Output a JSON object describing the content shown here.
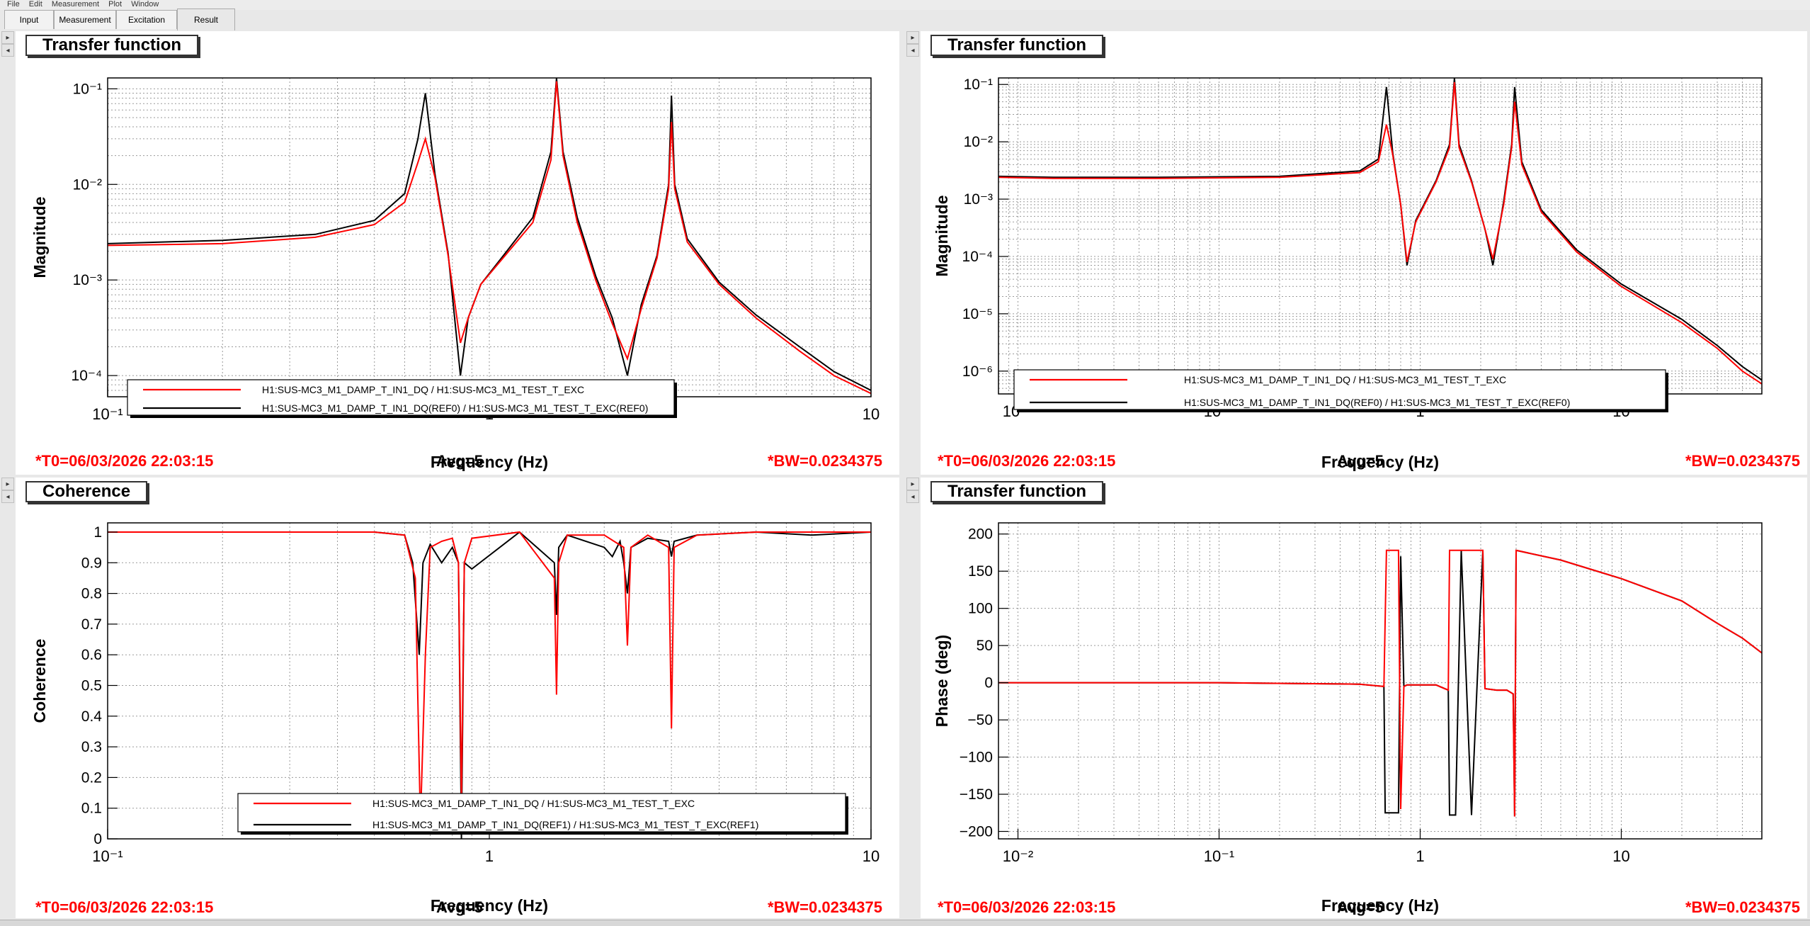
{
  "menu": [
    "File",
    "Edit",
    "Measurement",
    "Plot",
    "Window"
  ],
  "tabs": [
    {
      "label": "Input"
    },
    {
      "label": "Measurement"
    },
    {
      "label": "Excitation"
    },
    {
      "label": "Result",
      "active": true
    }
  ],
  "panels": [
    {
      "title": "Transfer function",
      "t0": "*T0=06/03/2026 22:03:15",
      "avg": "Avg=5",
      "bw": "*BW=0.0234375"
    },
    {
      "title": "Transfer function",
      "t0": "*T0=06/03/2026 22:03:15",
      "avg": "Avg=5",
      "bw": "*BW=0.0234375"
    },
    {
      "title": "Coherence",
      "t0": "*T0=06/03/2026 22:03:15",
      "avg": "Avg=5",
      "bw": "*BW=0.0234375"
    },
    {
      "title": "Transfer function",
      "t0": "*T0=06/03/2026 22:03:15",
      "avg": "Avg=5",
      "bw": "*BW=0.0234375"
    }
  ],
  "colors": {
    "current": "#ff0000",
    "reference": "#000000",
    "status": "#ff0000"
  },
  "chart_data": [
    {
      "type": "line",
      "xlabel": "Frequency (Hz)",
      "ylabel": "Magnitude",
      "xscale": "log",
      "yscale": "log",
      "xlim": [
        0.1,
        10
      ],
      "ylim": [
        6e-05,
        0.13
      ],
      "grid": true,
      "legend_position": "bottom-left",
      "xticks": [
        {
          "v": 0.1,
          "label": "10⁻¹"
        },
        {
          "v": 1,
          "label": "1"
        },
        {
          "v": 10,
          "label": "10"
        }
      ],
      "yticks": [
        {
          "v": 0.0001,
          "label": "10⁻⁴"
        },
        {
          "v": 0.001,
          "label": "10⁻³"
        },
        {
          "v": 0.01,
          "label": "10⁻²"
        },
        {
          "v": 0.1,
          "label": "10⁻¹"
        }
      ],
      "series": [
        {
          "name": "H1:SUS-MC3_M1_DAMP_T_IN1_DQ / H1:SUS-MC3_M1_TEST_T_EXC",
          "color": "#ff0000",
          "x": [
            0.1,
            0.2,
            0.35,
            0.5,
            0.6,
            0.65,
            0.68,
            0.72,
            0.78,
            0.84,
            0.88,
            0.95,
            1.1,
            1.3,
            1.45,
            1.5,
            1.56,
            1.7,
            1.9,
            2.1,
            2.3,
            2.5,
            2.75,
            2.95,
            3.0,
            3.06,
            3.3,
            4.0,
            5.0,
            6.5,
            8.0,
            10.0
          ],
          "y": [
            0.0023,
            0.0024,
            0.0028,
            0.0038,
            0.0065,
            0.017,
            0.03,
            0.012,
            0.0018,
            0.00022,
            0.0004,
            0.0009,
            0.0018,
            0.004,
            0.018,
            0.12,
            0.02,
            0.004,
            0.001,
            0.00035,
            0.00015,
            0.0005,
            0.0017,
            0.009,
            0.045,
            0.009,
            0.0025,
            0.0009,
            0.0004,
            0.00018,
            0.0001,
            6.5e-05
          ]
        },
        {
          "name": "H1:SUS-MC3_M1_DAMP_T_IN1_DQ(REF0) / H1:SUS-MC3_M1_TEST_T_EXC(REF0)",
          "color": "#000000",
          "x": [
            0.1,
            0.2,
            0.35,
            0.5,
            0.6,
            0.65,
            0.68,
            0.72,
            0.78,
            0.84,
            0.88,
            0.95,
            1.1,
            1.3,
            1.45,
            1.5,
            1.56,
            1.7,
            1.9,
            2.1,
            2.3,
            2.5,
            2.75,
            2.95,
            3.0,
            3.06,
            3.3,
            4.0,
            5.0,
            6.5,
            8.0,
            10.0
          ],
          "y": [
            0.0024,
            0.0026,
            0.003,
            0.0042,
            0.008,
            0.03,
            0.09,
            0.013,
            0.0019,
            0.0001,
            0.0004,
            0.0009,
            0.0019,
            0.0045,
            0.022,
            0.13,
            0.022,
            0.0045,
            0.0011,
            0.0004,
            0.0001,
            0.00055,
            0.0018,
            0.01,
            0.085,
            0.01,
            0.0027,
            0.00095,
            0.00043,
            0.0002,
            0.00011,
            7e-05
          ]
        }
      ]
    },
    {
      "type": "line",
      "xlabel": "Frequency (Hz)",
      "ylabel": "Magnitude",
      "xscale": "log",
      "yscale": "log",
      "xlim": [
        0.008,
        50
      ],
      "ylim": [
        4e-07,
        0.13
      ],
      "grid": true,
      "legend_position": "bottom-left",
      "xticks": [
        {
          "v": 0.01,
          "label": "10⁻²"
        },
        {
          "v": 0.1,
          "label": "10⁻¹"
        },
        {
          "v": 1,
          "label": "1"
        },
        {
          "v": 10,
          "label": "10"
        }
      ],
      "yticks": [
        {
          "v": 1e-06,
          "label": "10⁻⁶"
        },
        {
          "v": 1e-05,
          "label": "10⁻⁵"
        },
        {
          "v": 0.0001,
          "label": "10⁻⁴"
        },
        {
          "v": 0.001,
          "label": "10⁻³"
        },
        {
          "v": 0.01,
          "label": "10⁻²"
        },
        {
          "v": 0.1,
          "label": "10⁻¹"
        }
      ],
      "series": [
        {
          "name": "H1:SUS-MC3_M1_DAMP_T_IN1_DQ / H1:SUS-MC3_M1_TEST_T_EXC",
          "color": "#ff0000",
          "x": [
            0.008,
            0.015,
            0.05,
            0.2,
            0.5,
            0.62,
            0.68,
            0.73,
            0.8,
            0.86,
            0.95,
            1.2,
            1.4,
            1.48,
            1.56,
            1.8,
            2.1,
            2.3,
            2.6,
            2.85,
            2.95,
            3.2,
            4.0,
            6.0,
            10.0,
            20.0,
            30.0,
            40.0,
            50.0
          ],
          "y": [
            0.0024,
            0.0023,
            0.0023,
            0.0024,
            0.0029,
            0.0045,
            0.02,
            0.006,
            0.0008,
            8e-05,
            0.0004,
            0.002,
            0.008,
            0.11,
            0.008,
            0.002,
            0.0003,
            9e-05,
            0.0008,
            0.008,
            0.05,
            0.004,
            0.0006,
            0.00012,
            3e-05,
            7e-06,
            2.5e-06,
            1e-06,
            6e-07
          ]
        },
        {
          "name": "H1:SUS-MC3_M1_DAMP_T_IN1_DQ(REF0) / H1:SUS-MC3_M1_TEST_T_EXC(REF0)",
          "color": "#000000",
          "x": [
            0.008,
            0.015,
            0.05,
            0.2,
            0.5,
            0.62,
            0.68,
            0.73,
            0.8,
            0.86,
            0.95,
            1.2,
            1.4,
            1.48,
            1.56,
            1.8,
            2.1,
            2.3,
            2.6,
            2.85,
            2.95,
            3.2,
            4.0,
            6.0,
            10.0,
            20.0,
            30.0,
            40.0,
            50.0
          ],
          "y": [
            0.0025,
            0.0024,
            0.0024,
            0.0025,
            0.0031,
            0.005,
            0.09,
            0.0065,
            0.0008,
            7e-05,
            0.00042,
            0.0021,
            0.009,
            0.13,
            0.009,
            0.0021,
            0.0003,
            7e-05,
            0.0009,
            0.009,
            0.09,
            0.0045,
            0.00065,
            0.00013,
            3.3e-05,
            8e-06,
            2.8e-06,
            1.2e-06,
            7e-07
          ]
        }
      ]
    },
    {
      "type": "line",
      "xlabel": "Frequency (Hz)",
      "ylabel": "Coherence",
      "xscale": "log",
      "yscale": "linear",
      "xlim": [
        0.1,
        10
      ],
      "ylim": [
        0,
        1.03
      ],
      "grid": true,
      "legend_position": "bottom-right",
      "xticks": [
        {
          "v": 0.1,
          "label": "10⁻¹"
        },
        {
          "v": 1,
          "label": "1"
        },
        {
          "v": 10,
          "label": "10"
        }
      ],
      "yticks": [
        {
          "v": 0,
          "label": "0"
        },
        {
          "v": 0.1,
          "label": "0.1"
        },
        {
          "v": 0.2,
          "label": "0.2"
        },
        {
          "v": 0.3,
          "label": "0.3"
        },
        {
          "v": 0.4,
          "label": "0.4"
        },
        {
          "v": 0.5,
          "label": "0.5"
        },
        {
          "v": 0.6,
          "label": "0.6"
        },
        {
          "v": 0.7,
          "label": "0.7"
        },
        {
          "v": 0.8,
          "label": "0.8"
        },
        {
          "v": 0.9,
          "label": "0.9"
        },
        {
          "v": 1,
          "label": "1"
        }
      ],
      "series": [
        {
          "name": "H1:SUS-MC3_M1_DAMP_T_IN1_DQ / H1:SUS-MC3_M1_TEST_T_EXC",
          "color": "#ff0000",
          "x": [
            0.1,
            0.5,
            0.6,
            0.64,
            0.66,
            0.68,
            0.7,
            0.75,
            0.8,
            0.83,
            0.845,
            0.86,
            0.9,
            1.2,
            1.48,
            1.5,
            1.52,
            1.6,
            2.0,
            2.25,
            2.3,
            2.35,
            2.6,
            2.95,
            3.0,
            3.05,
            3.5,
            5.0,
            7.0,
            10.0
          ],
          "y": [
            1.0,
            1.0,
            0.99,
            0.85,
            0.05,
            0.6,
            0.95,
            0.97,
            0.98,
            0.9,
            0.12,
            0.9,
            0.98,
            1.0,
            0.85,
            0.47,
            0.9,
            0.99,
            0.99,
            0.95,
            0.63,
            0.95,
            0.99,
            0.95,
            0.36,
            0.95,
            0.99,
            1.0,
            1.0,
            1.0
          ]
        },
        {
          "name": "H1:SUS-MC3_M1_DAMP_T_IN1_DQ(REF1) / H1:SUS-MC3_M1_TEST_T_EXC(REF1)",
          "color": "#000000",
          "x": [
            0.1,
            0.5,
            0.6,
            0.63,
            0.655,
            0.67,
            0.7,
            0.75,
            0.8,
            0.83,
            0.845,
            0.86,
            0.9,
            1.2,
            1.48,
            1.5,
            1.52,
            1.6,
            2.0,
            2.1,
            2.2,
            2.25,
            2.3,
            2.35,
            2.6,
            2.95,
            3.0,
            3.05,
            3.5,
            5.0,
            7.0,
            10.0
          ],
          "y": [
            1.0,
            1.0,
            0.99,
            0.9,
            0.6,
            0.9,
            0.96,
            0.9,
            0.95,
            0.9,
            0.0,
            0.9,
            0.88,
            1.0,
            0.9,
            0.73,
            0.95,
            0.99,
            0.95,
            0.92,
            0.97,
            0.9,
            0.8,
            0.95,
            0.98,
            0.97,
            0.92,
            0.97,
            0.99,
            1.0,
            0.99,
            1.0
          ]
        }
      ]
    },
    {
      "type": "line",
      "xlabel": "Frequency (Hz)",
      "ylabel": "Phase (deg)",
      "xscale": "log",
      "yscale": "linear",
      "xlim": [
        0.008,
        50
      ],
      "ylim": [
        -210,
        215
      ],
      "grid": true,
      "xticks": [
        {
          "v": 0.01,
          "label": "10⁻²"
        },
        {
          "v": 0.1,
          "label": "10⁻¹"
        },
        {
          "v": 1,
          "label": "1"
        },
        {
          "v": 10,
          "label": "10"
        }
      ],
      "yticks": [
        {
          "v": -200,
          "label": "−200"
        },
        {
          "v": -150,
          "label": "−150"
        },
        {
          "v": -100,
          "label": "−100"
        },
        {
          "v": -50,
          "label": "−50"
        },
        {
          "v": 0,
          "label": "0"
        },
        {
          "v": 50,
          "label": "50"
        },
        {
          "v": 100,
          "label": "100"
        },
        {
          "v": 150,
          "label": "150"
        },
        {
          "v": 200,
          "label": "200"
        }
      ],
      "series": [
        {
          "name": "H1:SUS-MC3_M1_DAMP_T_IN1_DQ / H1:SUS-MC3_M1_TEST_T_EXC",
          "color": "#ff0000",
          "x": [
            0.008,
            0.1,
            0.5,
            0.66,
            0.68,
            0.7,
            0.74,
            0.78,
            0.8,
            0.83,
            0.86,
            1.2,
            1.38,
            1.4,
            1.5,
            1.6,
            1.8,
            2.05,
            2.1,
            2.4,
            2.7,
            2.9,
            2.95,
            3.0,
            5.0,
            10.0,
            20.0,
            30.0,
            40.0,
            50.0
          ],
          "y": [
            0,
            0,
            -2,
            -5,
            178,
            178,
            178,
            178,
            -170,
            -5,
            -3,
            -3,
            -10,
            178,
            178,
            178,
            178,
            178,
            -8,
            -10,
            -10,
            -15,
            -180,
            178,
            165,
            140,
            110,
            80,
            60,
            40
          ]
        },
        {
          "name": "H1:SUS-MC3_M1_DAMP_T_IN1_DQ(REF0) / H1:SUS-MC3_M1_TEST_T_EXC(REF0)",
          "color": "#000000",
          "x": [
            0.008,
            0.1,
            0.5,
            0.66,
            0.67,
            0.7,
            0.74,
            0.78,
            0.8,
            0.83,
            0.86,
            1.2,
            1.38,
            1.4,
            1.5,
            1.6,
            1.8,
            2.05,
            2.1,
            2.4,
            2.7,
            2.9,
            2.95,
            3.0,
            5.0,
            10.0,
            20.0,
            30.0,
            40.0,
            50.0
          ],
          "y": [
            0,
            0,
            -2,
            -5,
            -175,
            -175,
            -175,
            -175,
            170,
            -5,
            -3,
            -3,
            -10,
            -178,
            -178,
            178,
            -178,
            178,
            -8,
            -10,
            -10,
            -15,
            -180,
            178,
            165,
            140,
            110,
            80,
            60,
            40
          ]
        }
      ]
    }
  ]
}
